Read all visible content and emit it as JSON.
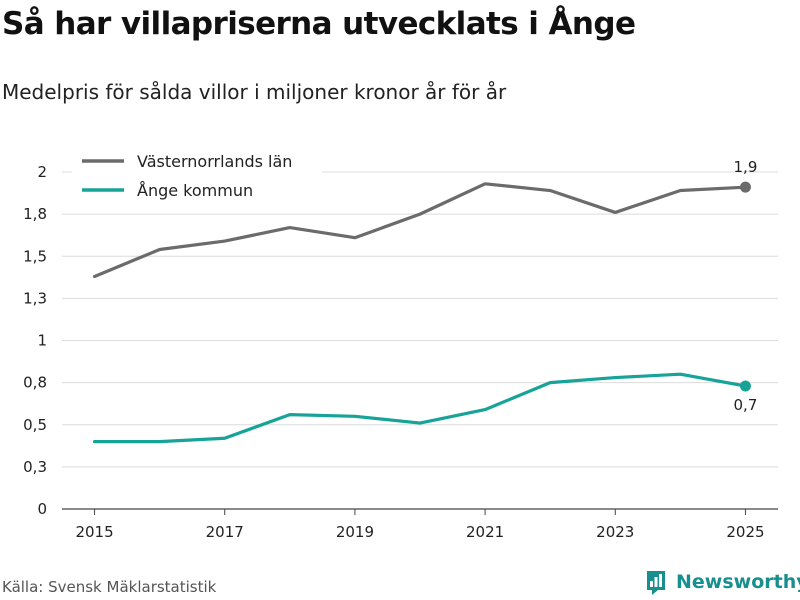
{
  "title": "Så har villapriserna utvecklats i Ånge",
  "subtitle": "Medelpris för sålda villor i miljoner kronor år för år",
  "source": "Källa: Svensk Mäklarstatistik",
  "brand": "Newsworthy",
  "colors": {
    "lan": "#6b6b6b",
    "kommun": "#17a398",
    "grid": "#dcdcdc",
    "brand": "#178f8e"
  },
  "chart_data": {
    "type": "line",
    "x": [
      2015,
      2016,
      2017,
      2018,
      2019,
      2020,
      2021,
      2022,
      2023,
      2024,
      2025
    ],
    "ylim": [
      0,
      2
    ],
    "xlim": [
      2014.5,
      2025.5
    ],
    "yticks": [
      {
        "value": 0,
        "label": "0"
      },
      {
        "value": 0.25,
        "label": "0,3"
      },
      {
        "value": 0.5,
        "label": "0,5"
      },
      {
        "value": 0.75,
        "label": "0,8"
      },
      {
        "value": 1,
        "label": "1"
      },
      {
        "value": 1.25,
        "label": "1,3"
      },
      {
        "value": 1.5,
        "label": "1,5"
      },
      {
        "value": 1.75,
        "label": "1,8"
      },
      {
        "value": 2,
        "label": "2"
      }
    ],
    "xticks": [
      {
        "value": 2015,
        "label": "2015"
      },
      {
        "value": 2017,
        "label": "2017"
      },
      {
        "value": 2019,
        "label": "2019"
      },
      {
        "value": 2021,
        "label": "2021"
      },
      {
        "value": 2023,
        "label": "2023"
      },
      {
        "value": 2025,
        "label": "2025"
      }
    ],
    "series": [
      {
        "name": "Västernorrlands län",
        "color": "#6b6b6b",
        "values": [
          1.38,
          1.54,
          1.59,
          1.67,
          1.61,
          1.75,
          1.93,
          1.89,
          1.76,
          1.89,
          1.91
        ],
        "end_label": "1,9",
        "end_label_position": "above"
      },
      {
        "name": "Ånge kommun",
        "color": "#17a398",
        "values": [
          0.4,
          0.4,
          0.42,
          0.56,
          0.55,
          0.51,
          0.59,
          0.75,
          0.78,
          0.8,
          0.73
        ],
        "end_label": "0,7",
        "end_label_position": "below"
      }
    ],
    "legend_position": "top-left",
    "grid": true
  }
}
